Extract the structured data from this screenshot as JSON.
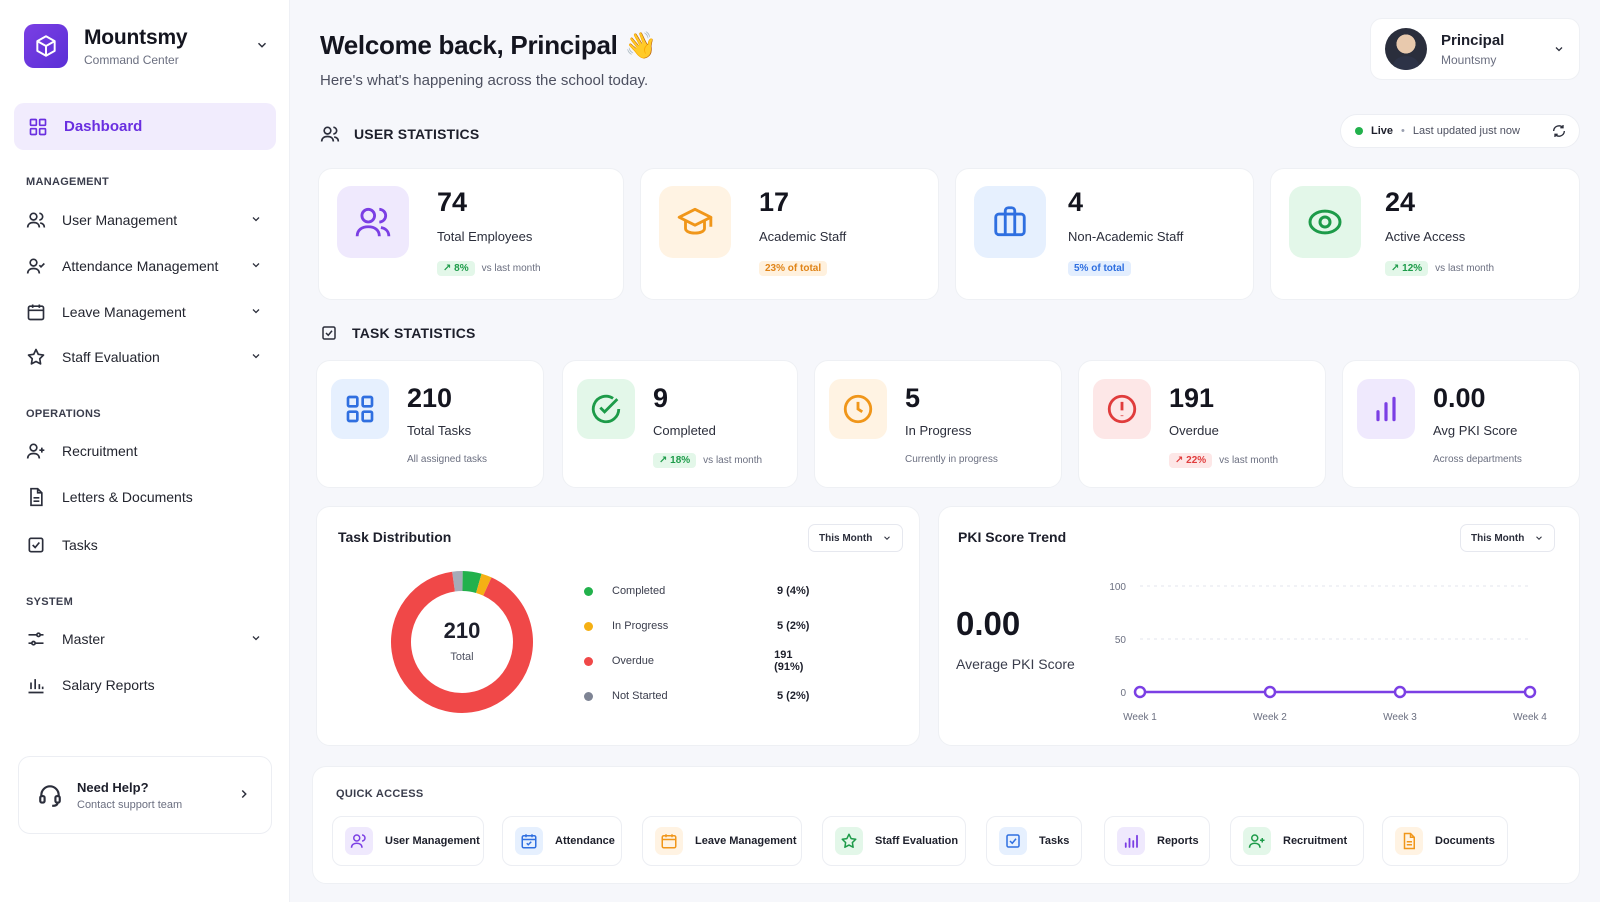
{
  "brand": {
    "title": "Mountsmy",
    "subtitle": "Command Center"
  },
  "nav": {
    "dashboard": "Dashboard",
    "management_label": "MANAGEMENT",
    "management": [
      "User Management",
      "Attendance Management",
      "Leave Management",
      "Staff Evaluation"
    ],
    "operations_label": "OPERATIONS",
    "operations": [
      "Recruitment",
      "Letters & Documents",
      "Tasks"
    ],
    "system_label": "SYSTEM",
    "system": [
      "Master",
      "Salary Reports"
    ]
  },
  "help": {
    "title": "Need Help?",
    "subtitle": "Contact support team"
  },
  "header": {
    "title": "Welcome back, Principal 👋",
    "subtitle": "Here's what's happening across the school today."
  },
  "profile": {
    "name": "Principal",
    "org": "Mountsmy"
  },
  "user_stats": {
    "heading": "USER STATISTICS",
    "live": "Live",
    "updated": "Last updated just now",
    "cards": [
      {
        "value": "74",
        "label": "Total Employees",
        "badge": "↗ 8%",
        "meta": "vs last month"
      },
      {
        "value": "17",
        "label": "Academic Staff",
        "badge": "23% of total",
        "meta": ""
      },
      {
        "value": "4",
        "label": "Non-Academic Staff",
        "badge": "5% of total",
        "meta": ""
      },
      {
        "value": "24",
        "label": "Active Access",
        "badge": "↗ 12%",
        "meta": "vs last month"
      }
    ]
  },
  "task_stats": {
    "heading": "TASK STATISTICS",
    "cards": [
      {
        "value": "210",
        "label": "Total Tasks",
        "badge": "",
        "meta": "All assigned tasks"
      },
      {
        "value": "9",
        "label": "Completed",
        "badge": "↗ 18%",
        "meta": "vs last month"
      },
      {
        "value": "5",
        "label": "In Progress",
        "badge": "",
        "meta": "Currently in progress"
      },
      {
        "value": "191",
        "label": "Overdue",
        "badge": "↗ 22%",
        "meta": "vs last month"
      },
      {
        "value": "0.00",
        "label": "Avg PKI Score",
        "badge": "",
        "meta": "Across departments"
      }
    ]
  },
  "task_distribution": {
    "title": "Task Distribution",
    "filter": "This Month",
    "center_value": "210",
    "center_label": "Total",
    "legend": [
      {
        "name": "Completed",
        "value": "9 (4%)",
        "color": "#22b14c"
      },
      {
        "name": "In Progress",
        "value": "5 (2%)",
        "color": "#f5b014"
      },
      {
        "name": "Overdue",
        "value": "191 (91%)",
        "color": "#f04848"
      },
      {
        "name": "Not Started",
        "value": "5 (2%)",
        "color": "#7e8494"
      }
    ]
  },
  "pki": {
    "title": "PKI Score Trend",
    "filter": "This Month",
    "value": "0.00",
    "label": "Average PKI Score"
  },
  "chart_data": [
    {
      "type": "pie",
      "categories": [
        "Completed",
        "In Progress",
        "Overdue",
        "Not Started"
      ],
      "values": [
        9,
        5,
        191,
        5
      ],
      "title": "Task Distribution",
      "colors": [
        "#22b14c",
        "#f5b014",
        "#f04848",
        "#a6abb8"
      ]
    },
    {
      "type": "line",
      "title": "PKI Score Trend",
      "categories": [
        "Week 1",
        "Week 2",
        "Week 3",
        "Week 4"
      ],
      "y_ticks": [
        "100",
        "50",
        "0"
      ],
      "series": [
        {
          "values": [
            0,
            0,
            0,
            0
          ]
        }
      ],
      "ylim": [
        0,
        100
      ],
      "grid": true,
      "color": "#7b3fe4"
    }
  ],
  "quick_access": {
    "heading": "QUICK ACCESS",
    "items": [
      "User Management",
      "Attendance",
      "Leave Management",
      "Staff Evaluation",
      "Tasks",
      "Reports",
      "Recruitment",
      "Documents"
    ]
  }
}
